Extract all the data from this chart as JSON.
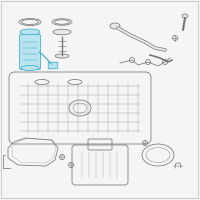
{
  "background_color": "#f5f5f5",
  "highlight_color": "#3aaccc",
  "highlight_fill": "#b8e4f0",
  "part_color": "#777777",
  "part_fill": "#e8e8e8",
  "lw": 0.55,
  "fig_width": 2.0,
  "fig_height": 2.0,
  "dpi": 100
}
